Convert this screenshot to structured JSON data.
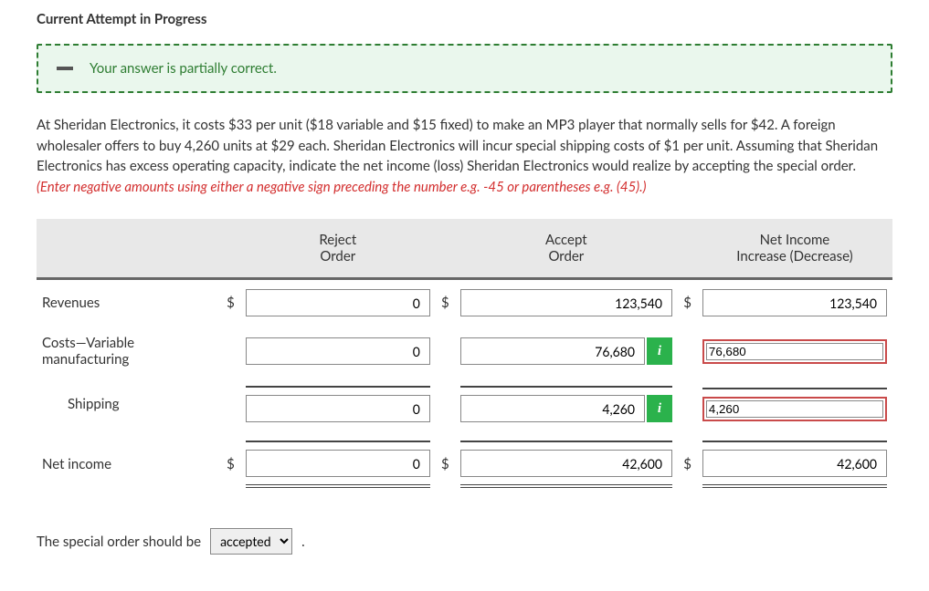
{
  "heading": "Current Attempt in Progress",
  "alert_text": "Your answer is partially correct.",
  "problem": {
    "body": "At Sheridan Electronics, it costs $33 per unit ($18 variable and $15 fixed) to make an MP3 player that normally sells for $42. A foreign wholesaler offers to buy 4,260 units at $29 each. Sheridan Electronics will incur special shipping costs of $1 per unit. Assuming that Sheridan Electronics has excess operating capacity, indicate the net income (loss) Sheridan Electronics would realize by accepting the special order. ",
    "hint": "(Enter negative amounts using either a negative sign preceding the number e.g. -45 or parentheses e.g. (45).)"
  },
  "columns": {
    "reject": "Reject\nOrder",
    "accept": "Accept\nOrder",
    "net": "Net Income\nIncrease (Decrease)"
  },
  "rows": {
    "revenues": {
      "label": "Revenues",
      "reject": "0",
      "accept": "123,540",
      "net": "123,540"
    },
    "costs_var": {
      "label": "Costs—Variable manufacturing",
      "reject": "0",
      "accept": "76,680",
      "net": "76,680"
    },
    "shipping": {
      "label": "Shipping",
      "reject": "0",
      "accept": "4,260",
      "net": "4,260"
    },
    "netincome": {
      "label": "Net income",
      "reject": "0",
      "accept": "42,600",
      "net": "42,600"
    }
  },
  "conclusion": {
    "prefix": "The special order should be",
    "value": "accepted",
    "suffix": "."
  }
}
